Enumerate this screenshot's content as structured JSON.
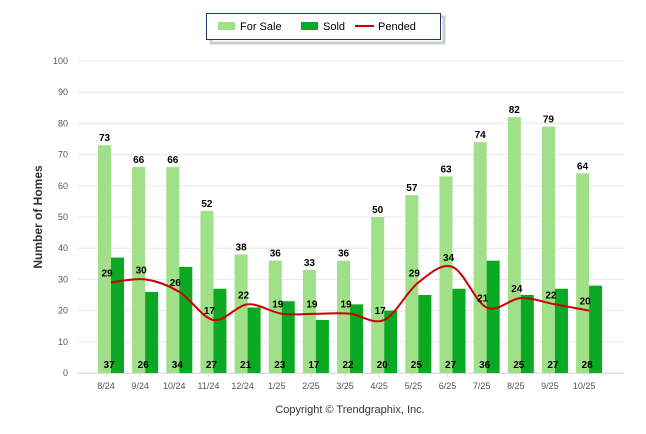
{
  "chart_data": {
    "type": "bar",
    "title": "",
    "xlabel": "",
    "ylabel": "Number of Homes",
    "ylim": [
      0,
      100
    ],
    "yticks": [
      "0",
      "10",
      "20",
      "30",
      "40",
      "50",
      "60",
      "70",
      "80",
      "90",
      "100"
    ],
    "grid": true,
    "legend_placement": "top-center",
    "categories": [
      "8/24",
      "9/24",
      "10/24",
      "11/24",
      "12/24",
      "1/25",
      "2/25",
      "3/25",
      "4/25",
      "5/25",
      "6/25",
      "7/25",
      "8/25",
      "9/25",
      "10/25"
    ],
    "series": [
      {
        "name": "For Sale",
        "kind": "bar",
        "color": "#a0e088",
        "values": [
          73,
          66,
          66,
          52,
          38,
          36,
          33,
          36,
          50,
          57,
          63,
          74,
          82,
          79,
          64
        ]
      },
      {
        "name": "Sold",
        "kind": "bar",
        "color": "#0ba923",
        "values": [
          37,
          26,
          34,
          27,
          21,
          23,
          17,
          22,
          20,
          25,
          27,
          36,
          25,
          27,
          28
        ]
      },
      {
        "name": "Pended",
        "kind": "line",
        "color": "#cc0000",
        "values": [
          29,
          30,
          26,
          17,
          22,
          19,
          19,
          19,
          17,
          29,
          34,
          21,
          24,
          22,
          20
        ]
      }
    ],
    "footer": "Copyright © Trendgraphix, Inc."
  }
}
